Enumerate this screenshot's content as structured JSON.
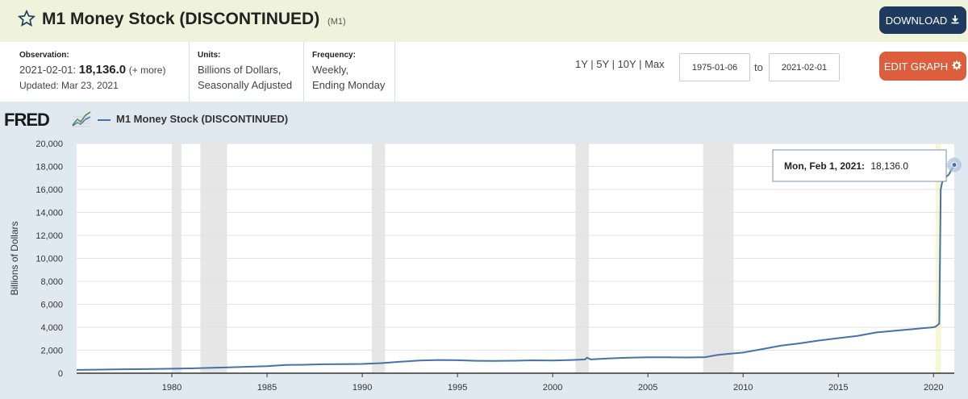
{
  "header": {
    "title": "M1 Money Stock (DISCONTINUED)",
    "series_id": "(M1)",
    "download_label": "DOWNLOAD",
    "star_icon": "star-outline-icon"
  },
  "meta": {
    "observation_label": "Observation:",
    "observation_date": "2021-02-01:",
    "observation_value": "18,136.0",
    "observation_more": "(+ more)",
    "updated": "Updated: Mar 23, 2021",
    "units_label": "Units:",
    "units_line1": "Billions of Dollars,",
    "units_line2": "Seasonally Adjusted",
    "frequency_label": "Frequency:",
    "frequency_line1": "Weekly,",
    "frequency_line2": "Ending Monday"
  },
  "controls": {
    "ranges": [
      "1Y",
      "5Y",
      "10Y",
      "Max"
    ],
    "start_date": "1975-01-06",
    "to_label": "to",
    "end_date": "2021-02-01",
    "edit_label": "EDIT GRAPH"
  },
  "chart": {
    "logo_text": "FRED",
    "legend": "M1 Money Stock (DISCONTINUED)",
    "tooltip_date": "Mon, Feb 1, 2021:",
    "tooltip_value": "18,136.0"
  },
  "colors": {
    "header_bg": "#f0f3dc",
    "download_btn": "#1f3a5f",
    "edit_btn": "#dd5e3c",
    "series_line": "#4572a7",
    "recession": "#e6e6e6",
    "plot_bg": "#e1e9f0"
  },
  "chart_data": {
    "type": "line",
    "title": "",
    "xlabel": "",
    "ylabel": "Billions of Dollars",
    "xlim": [
      1975.0,
      2021.09
    ],
    "ylim": [
      0,
      20000
    ],
    "yticks": [
      0,
      2000,
      4000,
      6000,
      8000,
      10000,
      12000,
      14000,
      16000,
      18000,
      20000
    ],
    "ytick_labels": [
      "0",
      "2,000",
      "4,000",
      "6,000",
      "8,000",
      "10,000",
      "12,000",
      "14,000",
      "16,000",
      "18,000",
      "20,000"
    ],
    "xticks": [
      1980,
      1985,
      1990,
      1995,
      2000,
      2005,
      2010,
      2015,
      2020
    ],
    "xtick_labels": [
      "1980",
      "1985",
      "1990",
      "1995",
      "2000",
      "2005",
      "2010",
      "2015",
      "2020"
    ],
    "grid": true,
    "recessions": [
      [
        1980.0,
        1980.5
      ],
      [
        1981.5,
        1982.9
      ],
      [
        1990.5,
        1991.2
      ],
      [
        2001.2,
        2001.9
      ],
      [
        2007.9,
        2009.5
      ],
      [
        2020.1,
        2020.4
      ]
    ],
    "series": [
      {
        "name": "M1 Money Stock (DISCONTINUED)",
        "x": [
          1975.0,
          1977.0,
          1979.0,
          1981.0,
          1983.0,
          1985.0,
          1986.0,
          1987.0,
          1988.0,
          1989.0,
          1990.0,
          1991.0,
          1992.0,
          1993.0,
          1994.0,
          1995.0,
          1996.0,
          1997.0,
          1998.0,
          1999.0,
          2000.0,
          2001.0,
          2001.7,
          2001.8,
          2002.0,
          2003.0,
          2004.0,
          2005.0,
          2006.0,
          2007.0,
          2008.0,
          2008.7,
          2009.0,
          2010.0,
          2011.0,
          2012.0,
          2013.0,
          2014.0,
          2015.0,
          2016.0,
          2017.0,
          2018.0,
          2019.0,
          2020.0,
          2020.1,
          2020.3,
          2020.38,
          2020.45,
          2020.6,
          2020.8,
          2021.09
        ],
        "y": [
          290,
          330,
          375,
          420,
          510,
          620,
          720,
          740,
          780,
          790,
          810,
          880,
          1000,
          1100,
          1150,
          1130,
          1080,
          1070,
          1090,
          1120,
          1100,
          1150,
          1200,
          1350,
          1200,
          1290,
          1350,
          1380,
          1380,
          1370,
          1400,
          1600,
          1650,
          1800,
          2100,
          2400,
          2600,
          2850,
          3050,
          3250,
          3550,
          3700,
          3850,
          4000,
          4050,
          4300,
          16000,
          16600,
          17000,
          17300,
          18136
        ]
      }
    ]
  }
}
